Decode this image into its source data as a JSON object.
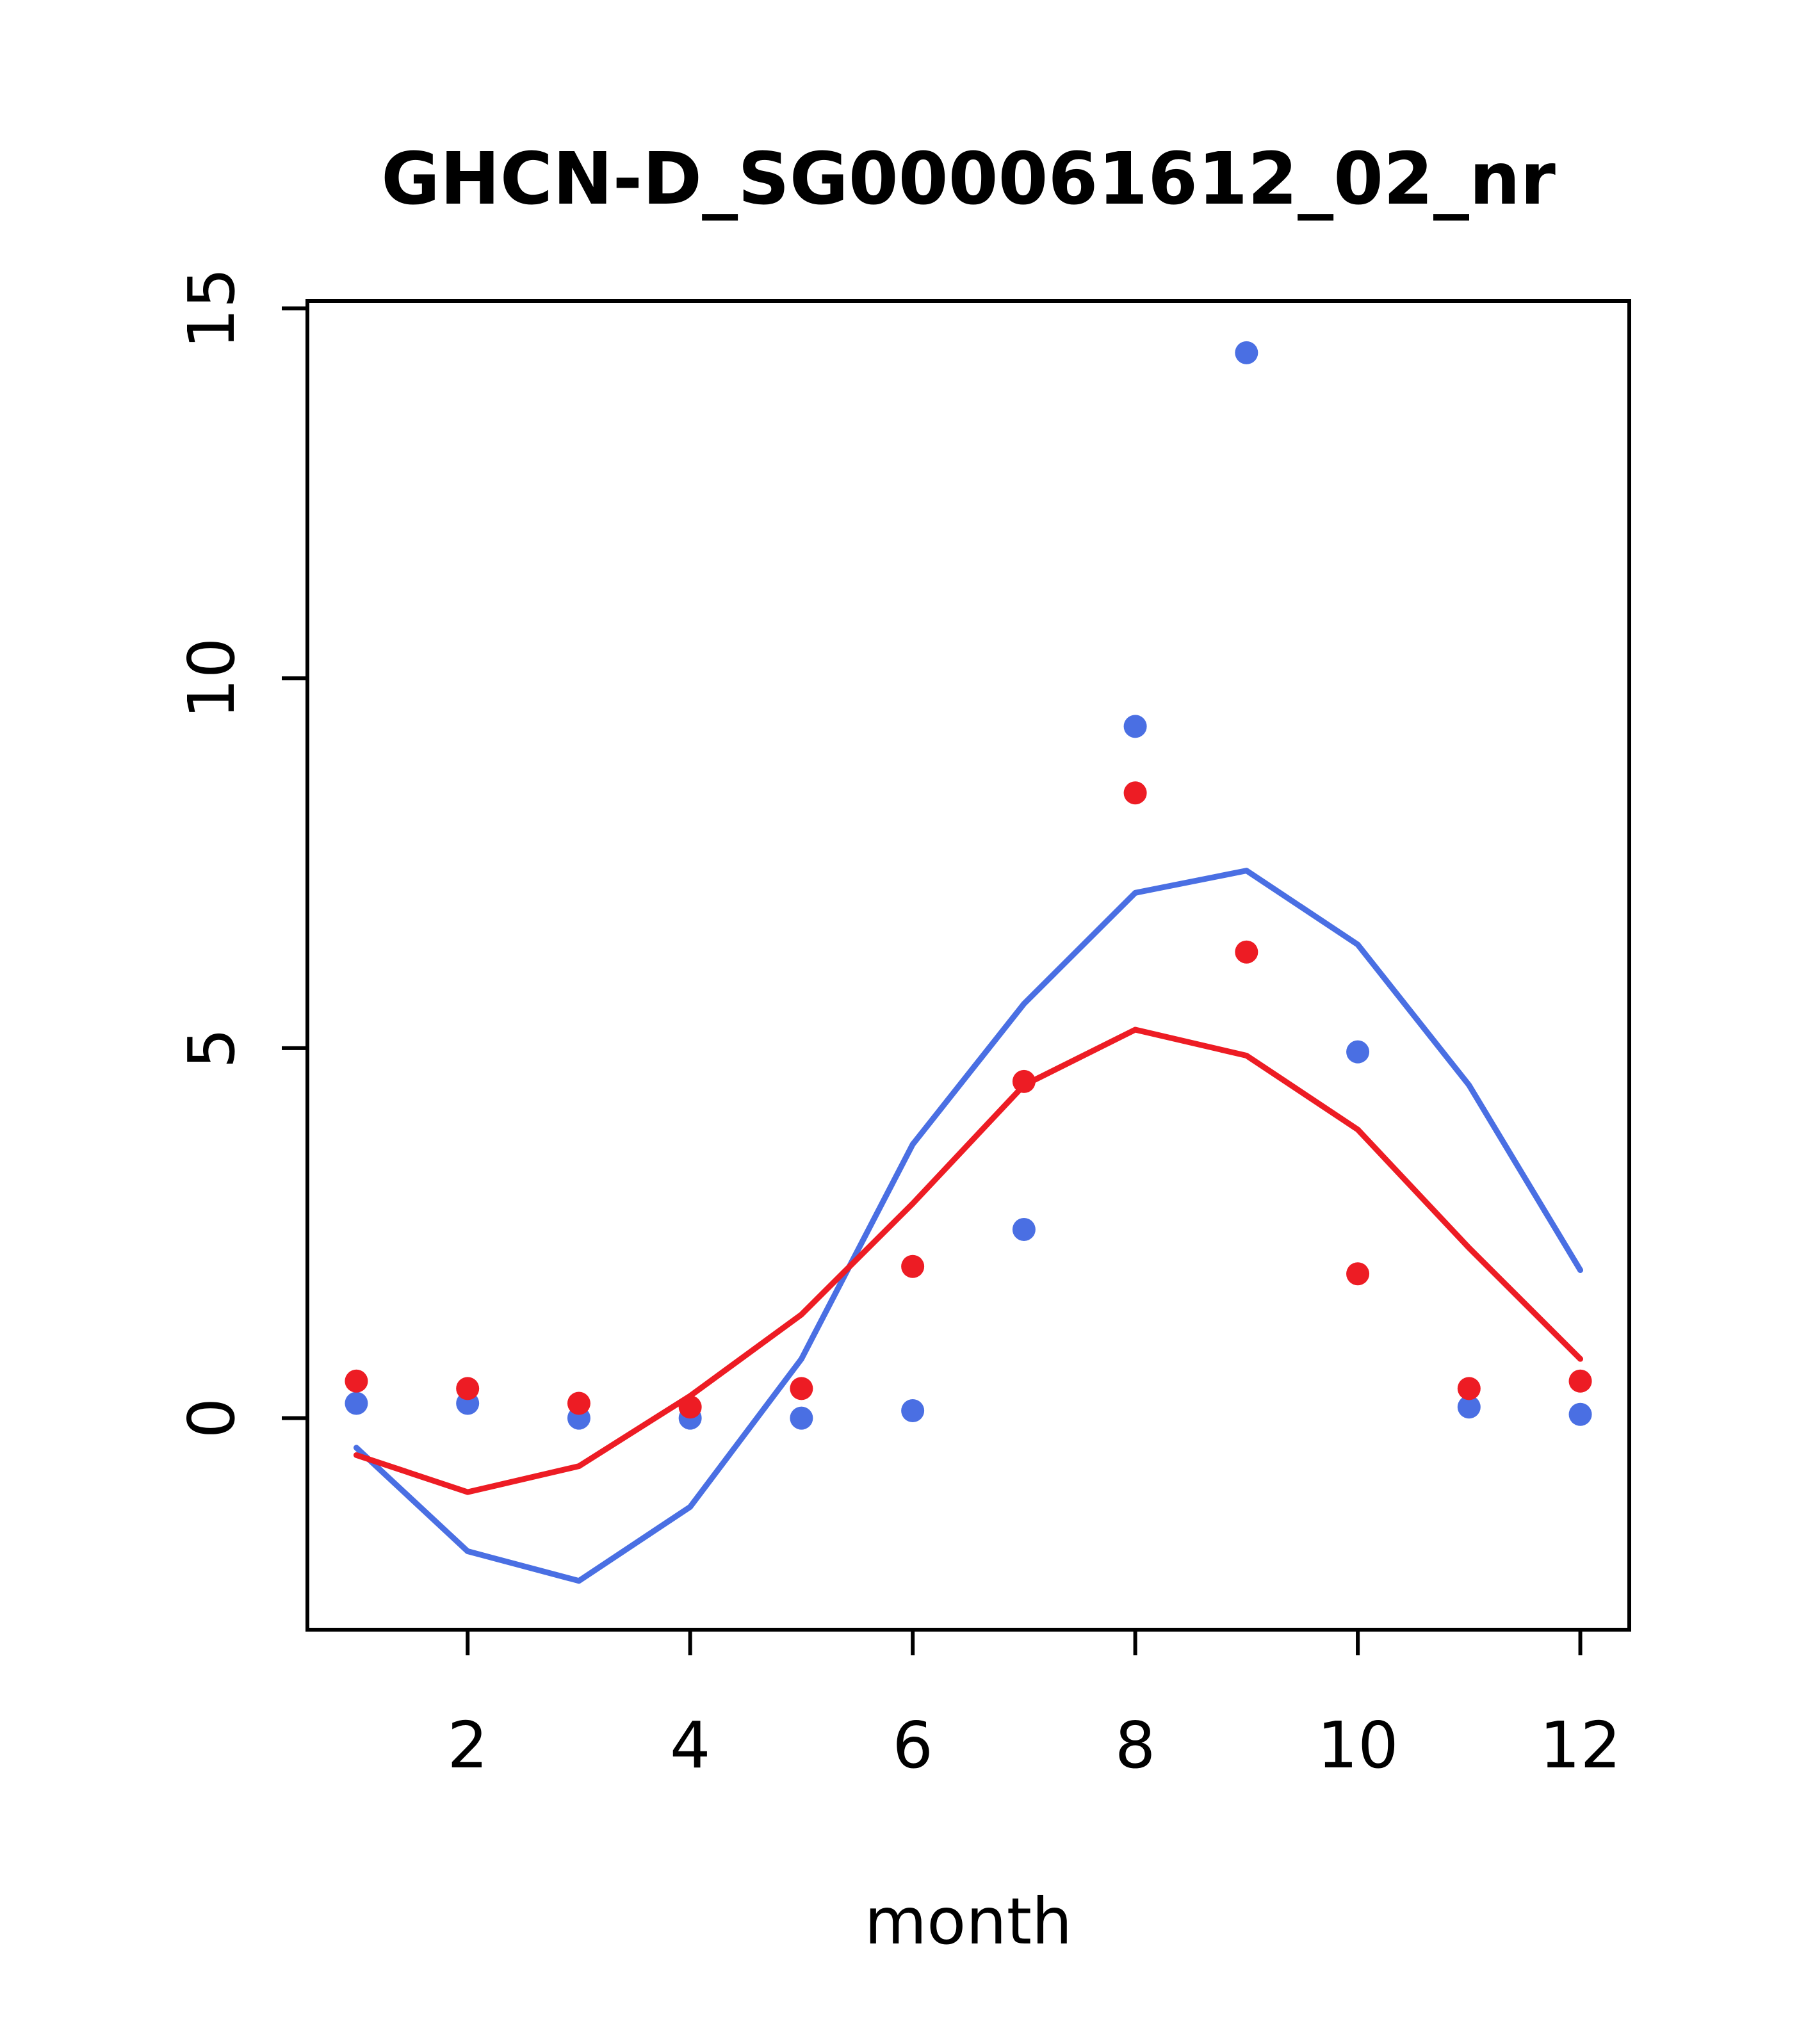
{
  "chart_data": {
    "type": "line",
    "title": "GHCN-D_SG000061612_02_nr",
    "xlabel": "month",
    "ylabel": "",
    "x": [
      1,
      2,
      3,
      4,
      5,
      6,
      7,
      8,
      9,
      10,
      11,
      12
    ],
    "xlim": [
      0.56,
      12.44
    ],
    "ylim": [
      -2.86,
      15.1
    ],
    "xticks": [
      2,
      4,
      6,
      8,
      10,
      12
    ],
    "yticks": [
      0,
      5,
      10,
      15
    ],
    "grid": false,
    "legend": "none",
    "colors": {
      "blue": "#4a6fe3",
      "red": "#ed1c24"
    },
    "series": [
      {
        "name": "blue-line",
        "type": "line",
        "color": "#4a6fe3",
        "values": [
          -0.4,
          -1.8,
          -2.2,
          -1.2,
          0.8,
          3.7,
          5.6,
          7.1,
          7.4,
          6.4,
          4.5,
          2.0
        ]
      },
      {
        "name": "red-line",
        "type": "line",
        "color": "#ed1c24",
        "values": [
          -0.5,
          -1.0,
          -0.65,
          0.3,
          1.4,
          2.9,
          4.5,
          5.25,
          4.9,
          3.9,
          2.3,
          0.8
        ]
      },
      {
        "name": "blue-points",
        "type": "scatter",
        "color": "#4a6fe3",
        "values": [
          0.2,
          0.2,
          0.0,
          0.0,
          0.0,
          0.1,
          2.55,
          9.35,
          14.4,
          4.95,
          0.15,
          0.05
        ]
      },
      {
        "name": "red-points",
        "type": "scatter",
        "color": "#ed1c24",
        "values": [
          0.5,
          0.4,
          0.2,
          0.15,
          0.4,
          2.05,
          4.55,
          8.45,
          6.3,
          1.95,
          0.4,
          0.5
        ]
      }
    ]
  }
}
